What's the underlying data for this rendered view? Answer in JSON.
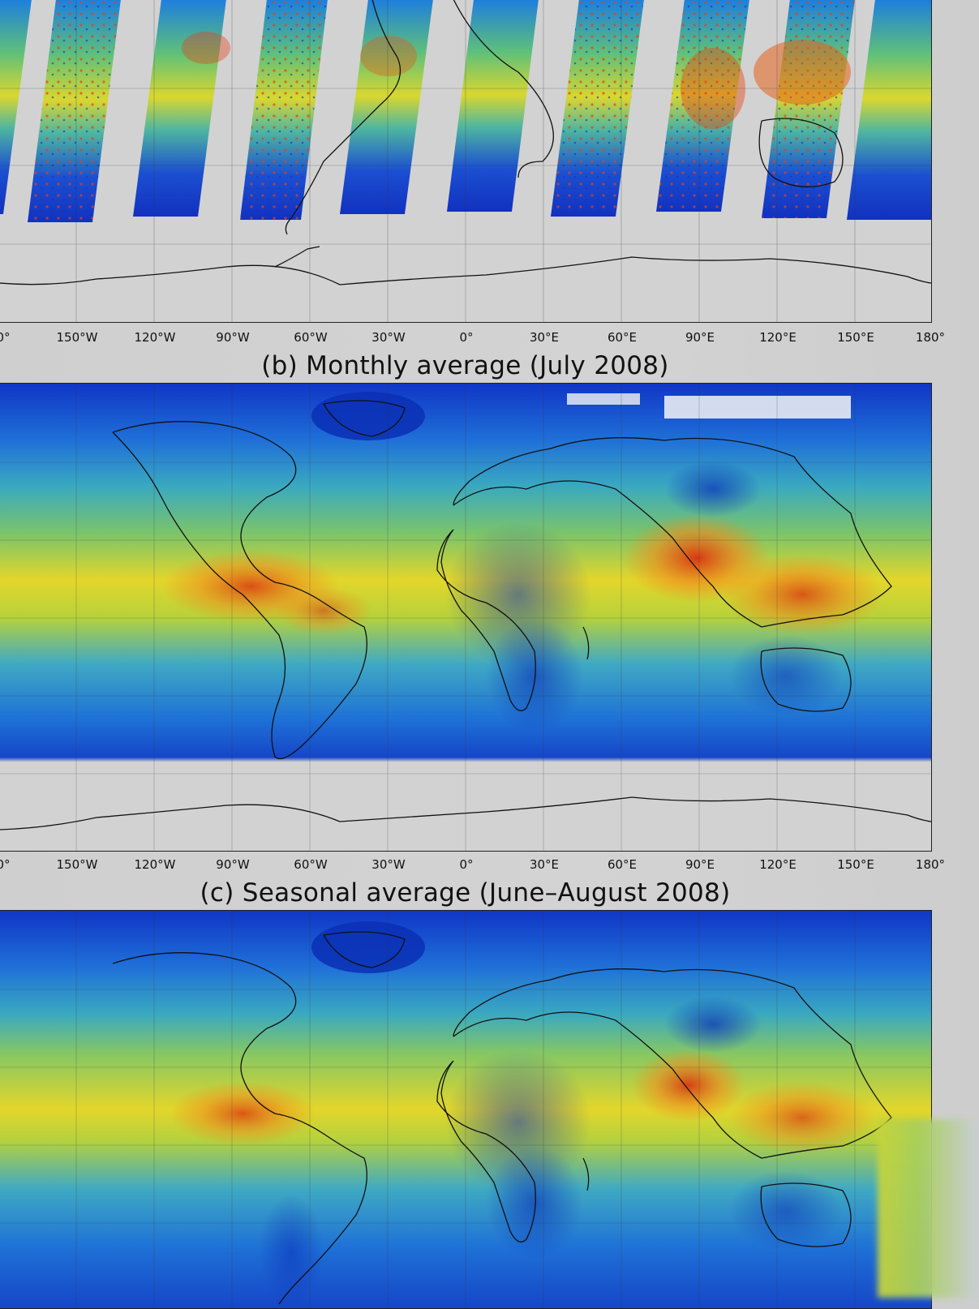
{
  "maps": [
    {
      "id": "a",
      "title": "",
      "lon_ticks": [
        "0°",
        "150°W",
        "120°W",
        "90°W",
        "60°W",
        "30°W",
        "0°",
        "30°E",
        "60°E",
        "90°E",
        "120°E",
        "150°E",
        "180°"
      ],
      "style": "swath"
    },
    {
      "id": "b",
      "title": "(b) Monthly average (July 2008)",
      "lon_ticks": [
        "0°",
        "150°W",
        "120°W",
        "90°W",
        "60°W",
        "30°W",
        "0°",
        "30°E",
        "60°E",
        "90°E",
        "120°E",
        "150°E",
        "180°"
      ],
      "style": "full"
    },
    {
      "id": "c",
      "title": "(c) Seasonal average (June–August 2008)",
      "lon_ticks": [],
      "style": "full"
    }
  ],
  "colors": {
    "low": "#0b35c8",
    "mid_low": "#1e8fdc",
    "mid": "#4fc38a",
    "mid_high": "#e6dc2a",
    "high": "#e53b12",
    "no_data": "#d2d2d2"
  }
}
